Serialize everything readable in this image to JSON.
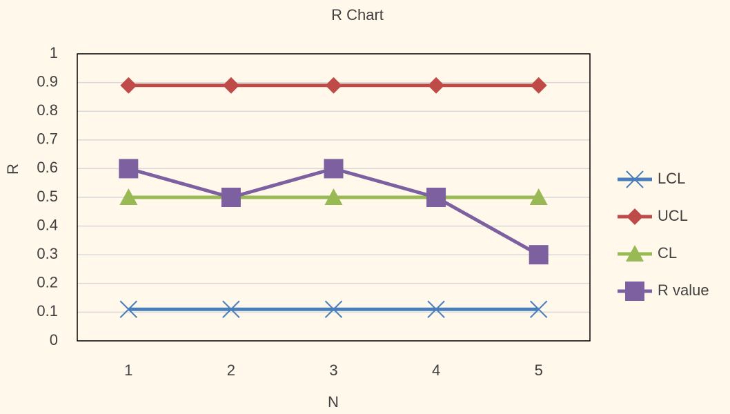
{
  "chart_data": {
    "type": "line",
    "title": "R Chart",
    "x_label": "N",
    "y_label": "R",
    "categories": [
      "1",
      "2",
      "3",
      "4",
      "5"
    ],
    "series": [
      {
        "name": "LCL",
        "color": "#4a7ebb",
        "marker": "x",
        "values": [
          0.11,
          0.11,
          0.11,
          0.11,
          0.11
        ]
      },
      {
        "name": "UCL",
        "color": "#be4b48",
        "marker": "diamond",
        "values": [
          0.89,
          0.89,
          0.89,
          0.89,
          0.89
        ]
      },
      {
        "name": "CL",
        "color": "#98b954",
        "marker": "triangle",
        "values": [
          0.5,
          0.5,
          0.5,
          0.5,
          0.5
        ]
      },
      {
        "name": "R value",
        "color": "#7d60a0",
        "marker": "square",
        "values": [
          0.6,
          0.5,
          0.6,
          0.5,
          0.3
        ]
      }
    ],
    "ylim": [
      0,
      1
    ],
    "yticks": [
      0,
      0.1,
      0.2,
      0.3,
      0.4,
      0.5,
      0.6,
      0.7,
      0.8,
      0.9,
      1
    ],
    "grid": true,
    "legend": "right"
  }
}
